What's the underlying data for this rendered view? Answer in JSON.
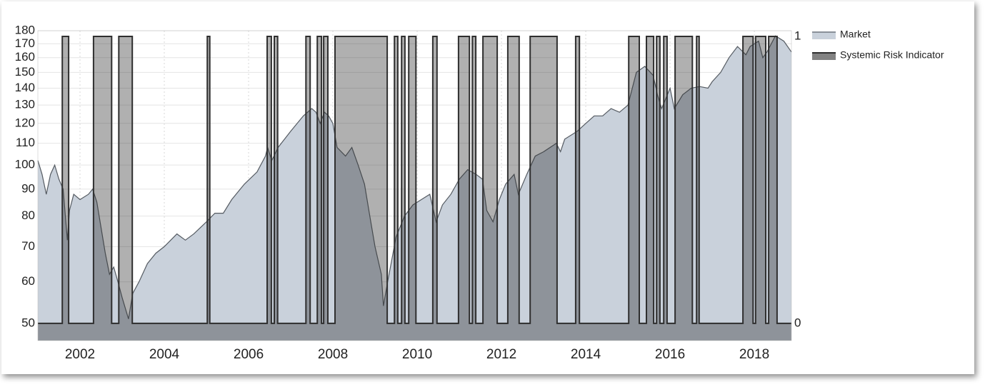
{
  "chart_data": {
    "type": "line",
    "log_scale_y": true,
    "grid": true,
    "xlim": [
      2001,
      2018.88
    ],
    "xticks": [
      2002,
      2004,
      2006,
      2008,
      2010,
      2012,
      2014,
      2016,
      2018
    ],
    "ylim": [
      46.4,
      180
    ],
    "yticks": [
      50,
      60,
      70,
      80,
      90,
      100,
      110,
      120,
      130,
      140,
      150,
      160,
      170,
      180
    ],
    "y2lim": [
      -0.06,
      1.02
    ],
    "y2ticks": [
      0,
      1
    ],
    "legend": "right",
    "series": [
      {
        "name": "Market",
        "color": "#c9d1db",
        "x": [
          2001.0,
          2001.1,
          2001.2,
          2001.3,
          2001.4,
          2001.5,
          2001.6,
          2001.7,
          2001.75,
          2001.85,
          2002.0,
          2002.2,
          2002.3,
          2002.4,
          2002.5,
          2002.6,
          2002.7,
          2002.8,
          2002.9,
          2003.0,
          2003.15,
          2003.25,
          2003.4,
          2003.6,
          2003.8,
          2004.0,
          2004.3,
          2004.5,
          2004.7,
          2005.0,
          2005.2,
          2005.4,
          2005.6,
          2005.9,
          2006.2,
          2006.4,
          2006.45,
          2006.55,
          2006.7,
          2007.0,
          2007.3,
          2007.5,
          2007.6,
          2007.7,
          2007.8,
          2007.9,
          2008.0,
          2008.1,
          2008.3,
          2008.45,
          2008.6,
          2008.75,
          2008.9,
          2009.0,
          2009.15,
          2009.2,
          2009.3,
          2009.5,
          2009.7,
          2009.9,
          2010.1,
          2010.3,
          2010.45,
          2010.6,
          2010.8,
          2011.0,
          2011.2,
          2011.4,
          2011.55,
          2011.65,
          2011.8,
          2011.95,
          2012.1,
          2012.3,
          2012.4,
          2012.6,
          2012.8,
          2013.0,
          2013.3,
          2013.4,
          2013.5,
          2013.8,
          2014.0,
          2014.2,
          2014.4,
          2014.6,
          2014.8,
          2015.0,
          2015.2,
          2015.4,
          2015.6,
          2015.7,
          2015.8,
          2016.0,
          2016.1,
          2016.3,
          2016.5,
          2016.7,
          2016.9,
          2017.0,
          2017.2,
          2017.4,
          2017.6,
          2017.8,
          2017.9,
          2018.1,
          2018.2,
          2018.3,
          2018.5,
          2018.7,
          2018.88
        ],
        "values": [
          102,
          96,
          88,
          96,
          100,
          94,
          90,
          72,
          82,
          88,
          86,
          88,
          90,
          85,
          76,
          68,
          62,
          64,
          60,
          56,
          51,
          57,
          60,
          65,
          68,
          70,
          74,
          72,
          74,
          78,
          81,
          81,
          86,
          92,
          97,
          104,
          108,
          102,
          108,
          116,
          124,
          128,
          126,
          120,
          126,
          124,
          120,
          108,
          104,
          108,
          100,
          92,
          78,
          70,
          62,
          54,
          60,
          73,
          80,
          84,
          86,
          88,
          78,
          84,
          88,
          94,
          98,
          96,
          94,
          82,
          78,
          86,
          92,
          96,
          88,
          96,
          104,
          106,
          110,
          106,
          112,
          116,
          120,
          124,
          124,
          128,
          126,
          130,
          150,
          154,
          148,
          136,
          128,
          140,
          128,
          136,
          140,
          141,
          140,
          144,
          150,
          160,
          168,
          162,
          168,
          172,
          160,
          164,
          176,
          172,
          164
        ]
      },
      {
        "name": "Systemic Risk Indicator",
        "color": "#2f2f2f",
        "axis": "y2",
        "step": true,
        "x": [
          2001.0,
          2001.58,
          2001.73,
          2002.32,
          2002.75,
          2002.92,
          2003.24,
          2005.02,
          2005.08,
          2006.44,
          2006.54,
          2006.61,
          2006.69,
          2007.36,
          2007.46,
          2007.63,
          2007.73,
          2007.78,
          2007.88,
          2008.05,
          2009.29,
          2009.46,
          2009.54,
          2009.63,
          2009.71,
          2009.8,
          2009.97,
          2010.37,
          2010.47,
          2010.98,
          2011.24,
          2011.31,
          2011.39,
          2011.56,
          2011.9,
          2012.15,
          2012.42,
          2012.68,
          2013.32,
          2013.76,
          2013.85,
          2015.02,
          2015.27,
          2015.44,
          2015.61,
          2015.68,
          2015.76,
          2015.85,
          2015.93,
          2016.12,
          2016.53,
          2016.63,
          2016.69,
          2017.73,
          2017.97,
          2018.03,
          2018.27,
          2018.34,
          2018.54,
          2018.88
        ],
        "values": [
          0,
          1,
          0,
          1,
          0,
          1,
          0,
          1,
          0,
          1,
          0,
          1,
          0,
          1,
          0,
          1,
          0,
          1,
          0,
          1,
          0,
          1,
          0,
          1,
          0,
          1,
          0,
          1,
          0,
          1,
          0,
          1,
          0,
          1,
          0,
          1,
          0,
          1,
          0,
          1,
          0,
          1,
          0,
          1,
          0,
          1,
          0,
          1,
          0,
          1,
          0,
          1,
          0,
          1,
          0,
          1,
          0,
          1,
          0,
          0
        ]
      }
    ]
  }
}
